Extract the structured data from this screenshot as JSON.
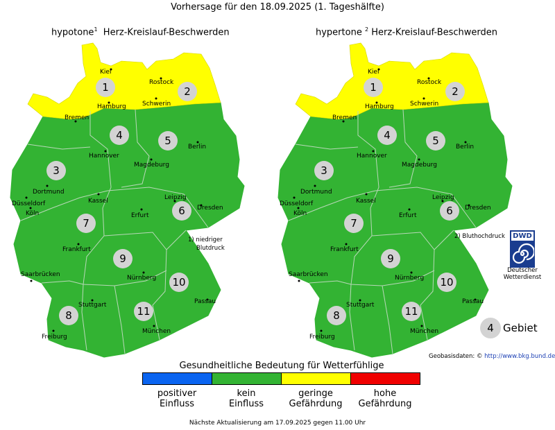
{
  "header": {
    "title": "Vorhersage für den 18.09.2025 (1. Tageshälfte)"
  },
  "maps": [
    {
      "id": "hypotone",
      "prefix": "hypotone",
      "sup": "1",
      "suffix": "Herz-Kreislauf-Beschwerden"
    },
    {
      "id": "hypertone",
      "prefix": "hypertone",
      "sup": "2",
      "suffix": "Herz-Kreislauf-Beschwerden"
    }
  ],
  "regions": [
    {
      "id": "1",
      "risk": "geringe Gefährdung"
    },
    {
      "id": "2",
      "risk": "geringe Gefährdung"
    },
    {
      "id": "3",
      "risk": "kein Einfluss"
    },
    {
      "id": "4",
      "risk": "kein Einfluss"
    },
    {
      "id": "5",
      "risk": "kein Einfluss"
    },
    {
      "id": "6",
      "risk": "kein Einfluss"
    },
    {
      "id": "7",
      "risk": "kein Einfluss"
    },
    {
      "id": "8",
      "risk": "kein Einfluss"
    },
    {
      "id": "9",
      "risk": "kein Einfluss"
    },
    {
      "id": "10",
      "risk": "kein Einfluss"
    },
    {
      "id": "11",
      "risk": "kein Einfluss"
    }
  ],
  "cities": [
    "Kiel",
    "Rostock",
    "Hamburg",
    "Schwerin",
    "Bremen",
    "Hannover",
    "Berlin",
    "Magdeburg",
    "Dortmund",
    "Düsseldorf",
    "Köln",
    "Kassel",
    "Leipzig",
    "Dresden",
    "Erfurt",
    "Frankfurt",
    "Nürnberg",
    "Saarbrücken",
    "Stuttgart",
    "Passau",
    "Freiburg",
    "München"
  ],
  "notes": {
    "note1_line1": "1) niedriger",
    "note1_line2": "Blutdruck",
    "note2": "2) Bluthochdruck"
  },
  "dwd": {
    "logo_text": "DWD",
    "line1": "Deutscher",
    "line2": "Wetterdienst"
  },
  "key": {
    "number": "4",
    "label": "Gebiet"
  },
  "source": {
    "label": "Geobasisdaten: ©",
    "link": "http://www.bkg.bund.de"
  },
  "legend": {
    "title": "Gesundheitliche Bedeutung für Wetterfühlige",
    "items": [
      {
        "line1": "positiver",
        "line2": "Einfluss",
        "color": "#0a64f0"
      },
      {
        "line1": "kein",
        "line2": "Einfluss",
        "color": "#33b333"
      },
      {
        "line1": "geringe",
        "line2": "Gefährdung",
        "color": "#ffff00"
      },
      {
        "line1": "hohe",
        "line2": "Gefährdung",
        "color": "#f00000"
      }
    ]
  },
  "footer": {
    "update": "Nächste Aktualisierung am 17.09.2025 gegen 11.00 Uhr"
  },
  "colors": {
    "green": "#33b333",
    "yellow": "#ffff00",
    "circle": "#d3d3d3",
    "border": "#b9d8b9"
  }
}
